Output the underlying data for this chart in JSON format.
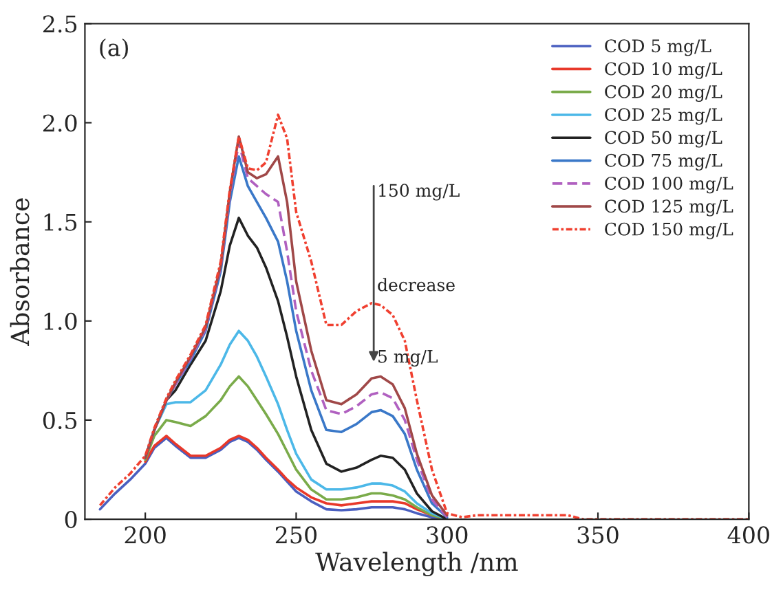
{
  "chart_data": {
    "type": "line",
    "xlabel": "Wavelength /nm",
    "ylabel": "Absorbance",
    "x": [
      185,
      190,
      195,
      200,
      203,
      207,
      210,
      215,
      220,
      225,
      228,
      231,
      234,
      237,
      240,
      244,
      247,
      250,
      255,
      260,
      265,
      270,
      275,
      278,
      282,
      286,
      290,
      295,
      300,
      305,
      310,
      320,
      330,
      340,
      345,
      350,
      400
    ],
    "series": [
      {
        "name": "COD 5 mg/L",
        "color": "#4a5fc0",
        "line_style": "solid",
        "values": [
          0.05,
          0.13,
          0.2,
          0.28,
          0.36,
          0.41,
          0.37,
          0.31,
          0.31,
          0.35,
          0.39,
          0.41,
          0.39,
          0.35,
          0.3,
          0.24,
          0.19,
          0.14,
          0.09,
          0.05,
          0.045,
          0.05,
          0.06,
          0.06,
          0.06,
          0.05,
          0.03,
          0.01,
          0,
          null,
          null,
          null,
          null,
          null,
          null,
          null,
          null
        ]
      },
      {
        "name": "COD 10 mg/L",
        "color": "#e8382a",
        "line_style": "solid",
        "values": [
          null,
          null,
          null,
          0.29,
          0.37,
          0.42,
          0.38,
          0.32,
          0.32,
          0.36,
          0.4,
          0.42,
          0.4,
          0.36,
          0.31,
          0.25,
          0.2,
          0.16,
          0.11,
          0.08,
          0.07,
          0.08,
          0.09,
          0.09,
          0.09,
          0.08,
          0.05,
          0.02,
          0,
          null,
          null,
          null,
          null,
          null,
          null,
          null,
          null
        ]
      },
      {
        "name": "COD 20 mg/L",
        "color": "#7aab4a",
        "line_style": "solid",
        "values": [
          null,
          null,
          null,
          0.3,
          0.42,
          0.5,
          0.49,
          0.47,
          0.52,
          0.6,
          0.67,
          0.72,
          0.67,
          0.6,
          0.53,
          0.43,
          0.34,
          0.25,
          0.15,
          0.1,
          0.1,
          0.11,
          0.13,
          0.13,
          0.12,
          0.1,
          0.06,
          0.02,
          0,
          null,
          null,
          null,
          null,
          null,
          null,
          null,
          null
        ]
      },
      {
        "name": "COD 25 mg/L",
        "color": "#4cb8e8",
        "line_style": "solid",
        "values": [
          null,
          null,
          null,
          0.31,
          0.45,
          0.58,
          0.59,
          0.59,
          0.65,
          0.78,
          0.88,
          0.95,
          0.9,
          0.82,
          0.72,
          0.58,
          0.45,
          0.33,
          0.2,
          0.15,
          0.15,
          0.16,
          0.18,
          0.18,
          0.17,
          0.14,
          0.08,
          0.03,
          0,
          null,
          null,
          null,
          null,
          null,
          null,
          null,
          null
        ]
      },
      {
        "name": "COD 50 mg/L",
        "color": "#222222",
        "line_style": "solid",
        "values": [
          null,
          null,
          null,
          0.31,
          0.45,
          0.6,
          0.65,
          0.78,
          0.9,
          1.15,
          1.38,
          1.52,
          1.43,
          1.37,
          1.27,
          1.1,
          0.92,
          0.72,
          0.45,
          0.28,
          0.24,
          0.26,
          0.3,
          0.32,
          0.31,
          0.25,
          0.13,
          0.04,
          0,
          null,
          null,
          null,
          null,
          null,
          null,
          null,
          null
        ]
      },
      {
        "name": "COD 75 mg/L",
        "color": "#3a78c8",
        "line_style": "solid",
        "values": [
          null,
          null,
          null,
          0.31,
          0.45,
          0.6,
          0.68,
          0.8,
          0.95,
          1.25,
          1.6,
          1.83,
          1.68,
          1.6,
          1.52,
          1.4,
          1.2,
          0.95,
          0.65,
          0.45,
          0.44,
          0.48,
          0.54,
          0.55,
          0.52,
          0.43,
          0.25,
          0.08,
          0.01,
          null,
          null,
          null,
          null,
          null,
          null,
          null,
          null
        ]
      },
      {
        "name": "COD 100 mg/L",
        "color": "#b060c0",
        "line_style": "dashed",
        "values": [
          null,
          null,
          null,
          0.31,
          0.45,
          0.6,
          0.68,
          0.81,
          0.96,
          1.27,
          1.63,
          1.9,
          1.72,
          1.68,
          1.64,
          1.6,
          1.35,
          1.05,
          0.75,
          0.55,
          0.53,
          0.57,
          0.63,
          0.64,
          0.61,
          0.5,
          0.3,
          0.1,
          0.01,
          null,
          null,
          null,
          null,
          null,
          null,
          null,
          null
        ]
      },
      {
        "name": "COD 125 mg/L",
        "color": "#a04848",
        "line_style": "solid",
        "values": [
          null,
          null,
          null,
          0.31,
          0.45,
          0.6,
          0.69,
          0.82,
          0.97,
          1.28,
          1.65,
          1.93,
          1.75,
          1.72,
          1.74,
          1.83,
          1.6,
          1.2,
          0.85,
          0.6,
          0.58,
          0.63,
          0.71,
          0.72,
          0.68,
          0.56,
          0.33,
          0.12,
          0.02,
          null,
          null,
          null,
          null,
          null,
          null,
          null,
          null
        ]
      },
      {
        "name": "COD 150 mg/L",
        "color": "#f04030",
        "line_style": "dotted",
        "values": [
          0.07,
          0.16,
          0.23,
          0.32,
          0.46,
          0.61,
          0.7,
          0.83,
          0.98,
          1.3,
          1.66,
          1.93,
          1.77,
          1.76,
          1.8,
          2.04,
          1.92,
          1.55,
          1.3,
          0.98,
          0.98,
          1.05,
          1.09,
          1.08,
          1.03,
          0.9,
          0.6,
          0.25,
          0.03,
          0.01,
          0.02,
          0.02,
          0.02,
          0.02,
          0,
          0,
          0
        ]
      }
    ],
    "xlim": [
      180,
      400
    ],
    "xticks": [
      200,
      250,
      300,
      350,
      400
    ],
    "ylim": [
      0,
      2.5
    ],
    "yticks": [
      0,
      0.5,
      {
        "value": 1,
        "label": "1.0"
      },
      1.5,
      {
        "value": 2,
        "label": "2.0"
      },
      2.5
    ],
    "grid": false,
    "legend": "top right",
    "annotations": [
      "(a)",
      "150 mg/L",
      "decrease",
      "5 mg/L"
    ]
  }
}
